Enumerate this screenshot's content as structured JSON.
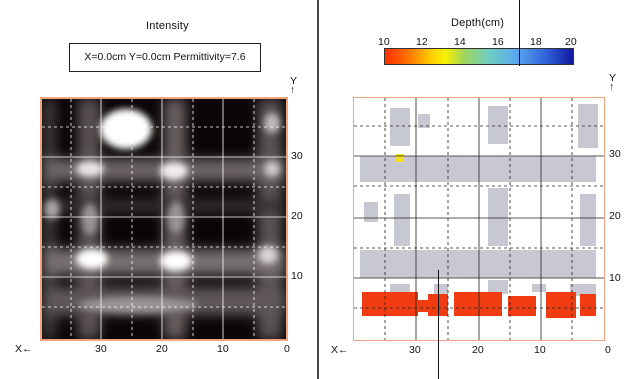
{
  "intensity_panel": {
    "title": "Intensity",
    "readout": "X=0.0cm Y=0.0cm Permittivity=7.6",
    "x_axis_label": "X←",
    "y_axis_label": "Y",
    "y_arrow": "↑",
    "x_ticks": [
      "30",
      "20",
      "10",
      "0"
    ],
    "y_ticks": [
      "30",
      "20",
      "10"
    ]
  },
  "depth_panel": {
    "title": "Depth(cm)",
    "colorbar_ticks": [
      "10",
      "12",
      "14",
      "16",
      "18",
      "20"
    ],
    "x_axis_label": "X←",
    "y_axis_label": "Y",
    "y_arrow": "↑",
    "x_ticks": [
      "30",
      "20",
      "10",
      "0"
    ],
    "y_ticks": [
      "30",
      "20",
      "10"
    ]
  },
  "colors": {
    "plot_border": "#f2a47e",
    "rebar_gray": "#c8c8d2",
    "shallow_red": "#f03c10",
    "highlight_yellow": "#f0e020"
  }
}
